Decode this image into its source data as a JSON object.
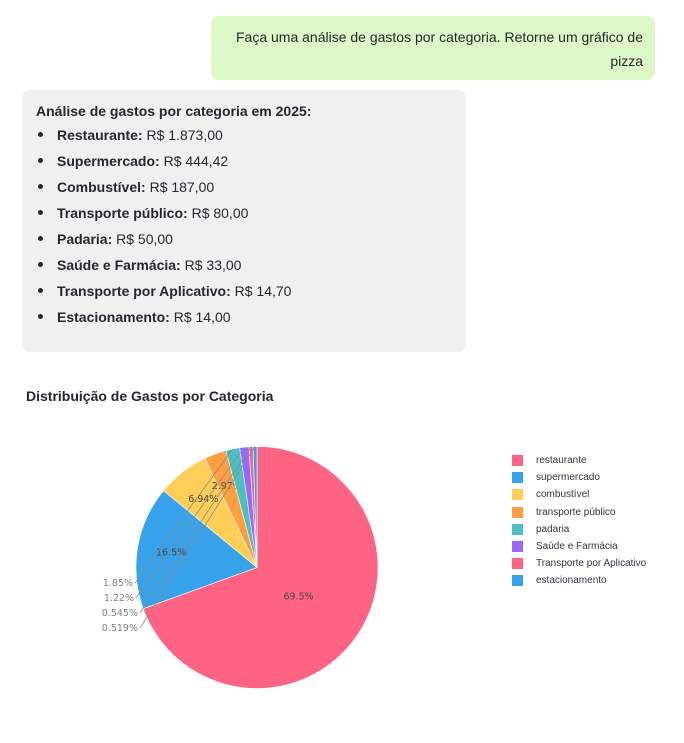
{
  "user_message": "Faça uma análise de gastos por categoria. Retorne um gráfico de pizza",
  "assistant": {
    "heading": "Análise de gastos por categoria em 2025:",
    "items": [
      {
        "label": "Restaurante:",
        "value": "R$ 1.873,00"
      },
      {
        "label": "Supermercado:",
        "value": "R$ 444,42"
      },
      {
        "label": "Combustível:",
        "value": "R$ 187,00"
      },
      {
        "label": "Transporte público:",
        "value": "R$ 80,00"
      },
      {
        "label": "Padaria:",
        "value": "R$ 50,00"
      },
      {
        "label": "Saúde e Farmácia:",
        "value": "R$ 33,00"
      },
      {
        "label": "Transporte por Aplicativo:",
        "value": "R$ 14,70"
      },
      {
        "label": "Estacionamento:",
        "value": "R$ 14,00"
      }
    ]
  },
  "chart_data": {
    "type": "pie",
    "title": "Distribuição de Gastos por Categoria",
    "categories": [
      "restaurante",
      "supermercado",
      "combustível",
      "transporte público",
      "padaria",
      "Saúde e Farmácia",
      "Transporte por Aplicativo",
      "estacionamento"
    ],
    "values": [
      1873.0,
      444.42,
      187.0,
      80.0,
      50.0,
      33.0,
      14.7,
      14.0
    ],
    "percent_labels": [
      "69.5%",
      "16.5%",
      "6.94%",
      "2.97%",
      "1.85%",
      "1.22%",
      "0.545%",
      "0.519%"
    ],
    "colors": [
      "#ff6384",
      "#36a2eb",
      "#ffce56",
      "#ff9f40",
      "#4bc0c0",
      "#9966ff",
      "#ff6384",
      "#36a2eb"
    ],
    "legend_position": "right"
  }
}
